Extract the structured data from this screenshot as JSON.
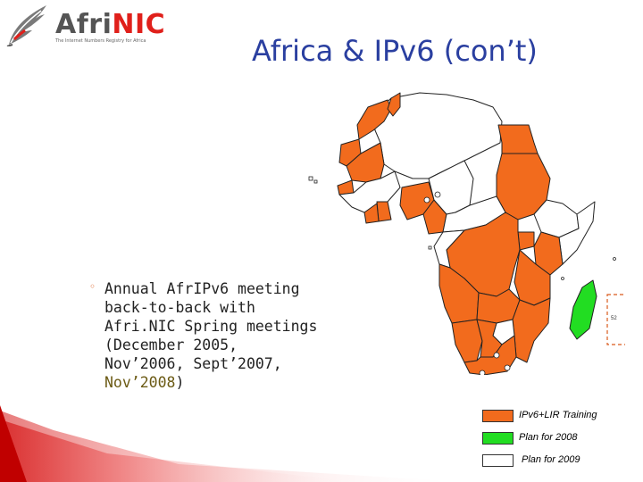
{
  "logo": {
    "word_a": "Afri",
    "word_b": "NIC",
    "tagline": "The Internet Numbers Registry for Africa"
  },
  "title": "Africa & IPv6 (con’t)",
  "bullet": {
    "line1": "Annual AfrIPv6 meeting",
    "line2": "back-to-back with",
    "line3": "Afri.NIC Spring meetings",
    "line4": "(December 2005,",
    "line5": "Nov’2006, Sept’2007,",
    "line6": "Nov’2008",
    "line6_end": ")"
  },
  "map": {
    "island_label": "52"
  },
  "legend": [
    {
      "label": "IPv6+LIR Training",
      "color": "#f26b1d"
    },
    {
      "label": "Plan for 2008",
      "color": "#22dd22"
    },
    {
      "label": "Plan for 2009",
      "color": "#ffffff"
    }
  ],
  "colors": {
    "trained": "#f26b1d",
    "plan2008": "#22dd22",
    "title": "#2a3fa0",
    "accent": "#e0201b"
  }
}
